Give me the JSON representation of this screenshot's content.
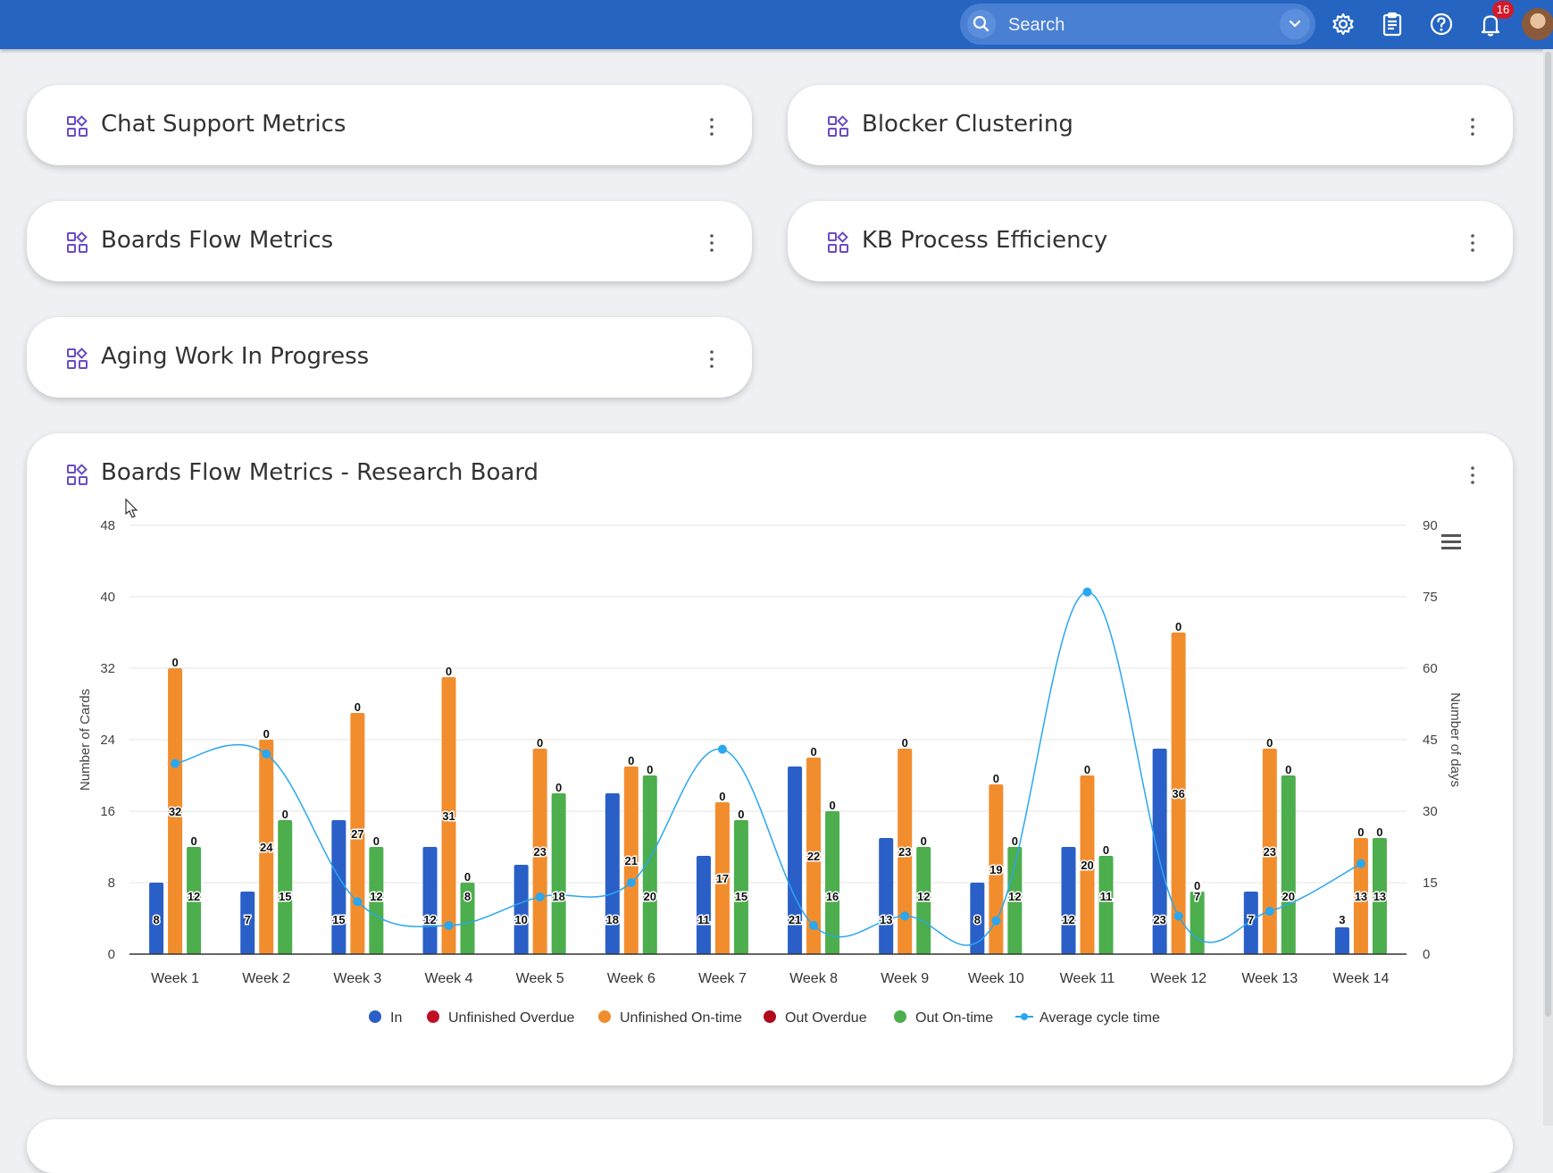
{
  "header": {
    "search": {
      "placeholder": "Search",
      "value": ""
    },
    "notifications_count": "16",
    "colors": {
      "bar": "#2564c1"
    }
  },
  "tiles": [
    {
      "title": "Chat Support Metrics"
    },
    {
      "title": "Blocker Clustering"
    },
    {
      "title": "Boards Flow Metrics"
    },
    {
      "title": "KB Process Efficiency"
    },
    {
      "title": "Aging Work In Progress"
    }
  ],
  "chart_widget": {
    "title": "Boards Flow Metrics - Research Board"
  },
  "chart_data": {
    "type": "bar",
    "categories": [
      "Week 1",
      "Week 2",
      "Week 3",
      "Week 4",
      "Week 5",
      "Week 6",
      "Week 7",
      "Week 8",
      "Week 9",
      "Week 10",
      "Week 11",
      "Week 12",
      "Week 13",
      "Week 14"
    ],
    "ylabel": "Number of Cards",
    "y2label": "Number of days",
    "ylim": [
      0,
      48
    ],
    "yticks": [
      0,
      8,
      16,
      24,
      32,
      40,
      48
    ],
    "y2lim": [
      0,
      90
    ],
    "y2ticks": [
      0,
      15,
      30,
      45,
      60,
      75,
      90
    ],
    "grid": true,
    "legend_position": "bottom",
    "series": [
      {
        "name": "In",
        "color": "#2a5fc8",
        "values": [
          8,
          7,
          15,
          12,
          10,
          18,
          11,
          21,
          13,
          8,
          12,
          23,
          7,
          3
        ]
      },
      {
        "name": "Unfinished Overdue",
        "color": "#c00f22",
        "values": [
          0,
          0,
          0,
          0,
          0,
          0,
          0,
          0,
          0,
          0,
          0,
          0,
          0,
          0
        ]
      },
      {
        "name": "Unfinished On-time",
        "color": "#f28d2e",
        "values": [
          32,
          24,
          27,
          31,
          23,
          21,
          17,
          22,
          23,
          19,
          20,
          36,
          23,
          13
        ]
      },
      {
        "name": "Out Overdue",
        "color": "#b00a1e",
        "values": [
          0,
          0,
          0,
          0,
          0,
          0,
          0,
          0,
          0,
          0,
          0,
          0,
          0,
          0
        ]
      },
      {
        "name": "Out On-time",
        "color": "#4cae4c",
        "values": [
          12,
          15,
          12,
          8,
          18,
          20,
          15,
          16,
          12,
          12,
          11,
          7,
          20,
          13
        ]
      },
      {
        "name": "Average cycle time",
        "type": "line",
        "axis": "right",
        "color": "#2aa7ee",
        "values": [
          40,
          42,
          11,
          6,
          12,
          15,
          43,
          6,
          8,
          7,
          76,
          8,
          9,
          19
        ]
      }
    ]
  }
}
